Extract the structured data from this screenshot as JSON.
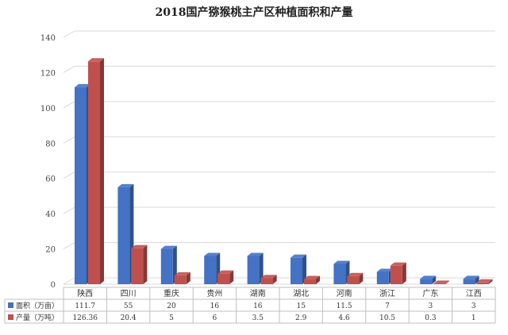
{
  "chart_data": {
    "type": "bar",
    "title": "2018国产猕猴桃主产区种植面积和产量",
    "categories": [
      "陕西",
      "四川",
      "重庆",
      "贵州",
      "湖南",
      "湖北",
      "河南",
      "浙江",
      "广东",
      "江西"
    ],
    "series": [
      {
        "name": "面积（万亩）",
        "values": [
          111.7,
          55,
          20,
          16,
          16,
          15,
          11.5,
          7,
          3,
          3
        ],
        "table_labels": [
          "111.7",
          "55",
          "20",
          "16",
          "16",
          "15",
          "11.5",
          "7",
          "3",
          "3"
        ],
        "color": "#4472C4"
      },
      {
        "name": "产量（万吨）",
        "values": [
          126.36,
          20.4,
          5,
          6,
          3.5,
          2.9,
          4.6,
          10.5,
          0.3,
          1
        ],
        "table_labels": [
          "126.36",
          "20.4",
          "5",
          "6",
          "3.5",
          "2.9",
          "4.6",
          "10.5",
          "0.3",
          "1"
        ],
        "color": "#C0504D"
      }
    ],
    "ylim": [
      0,
      140
    ],
    "yticks": [
      0,
      20,
      40,
      60,
      80,
      100,
      120,
      140
    ],
    "grid": true,
    "style": "3d-column",
    "legend": "data-table-below"
  }
}
